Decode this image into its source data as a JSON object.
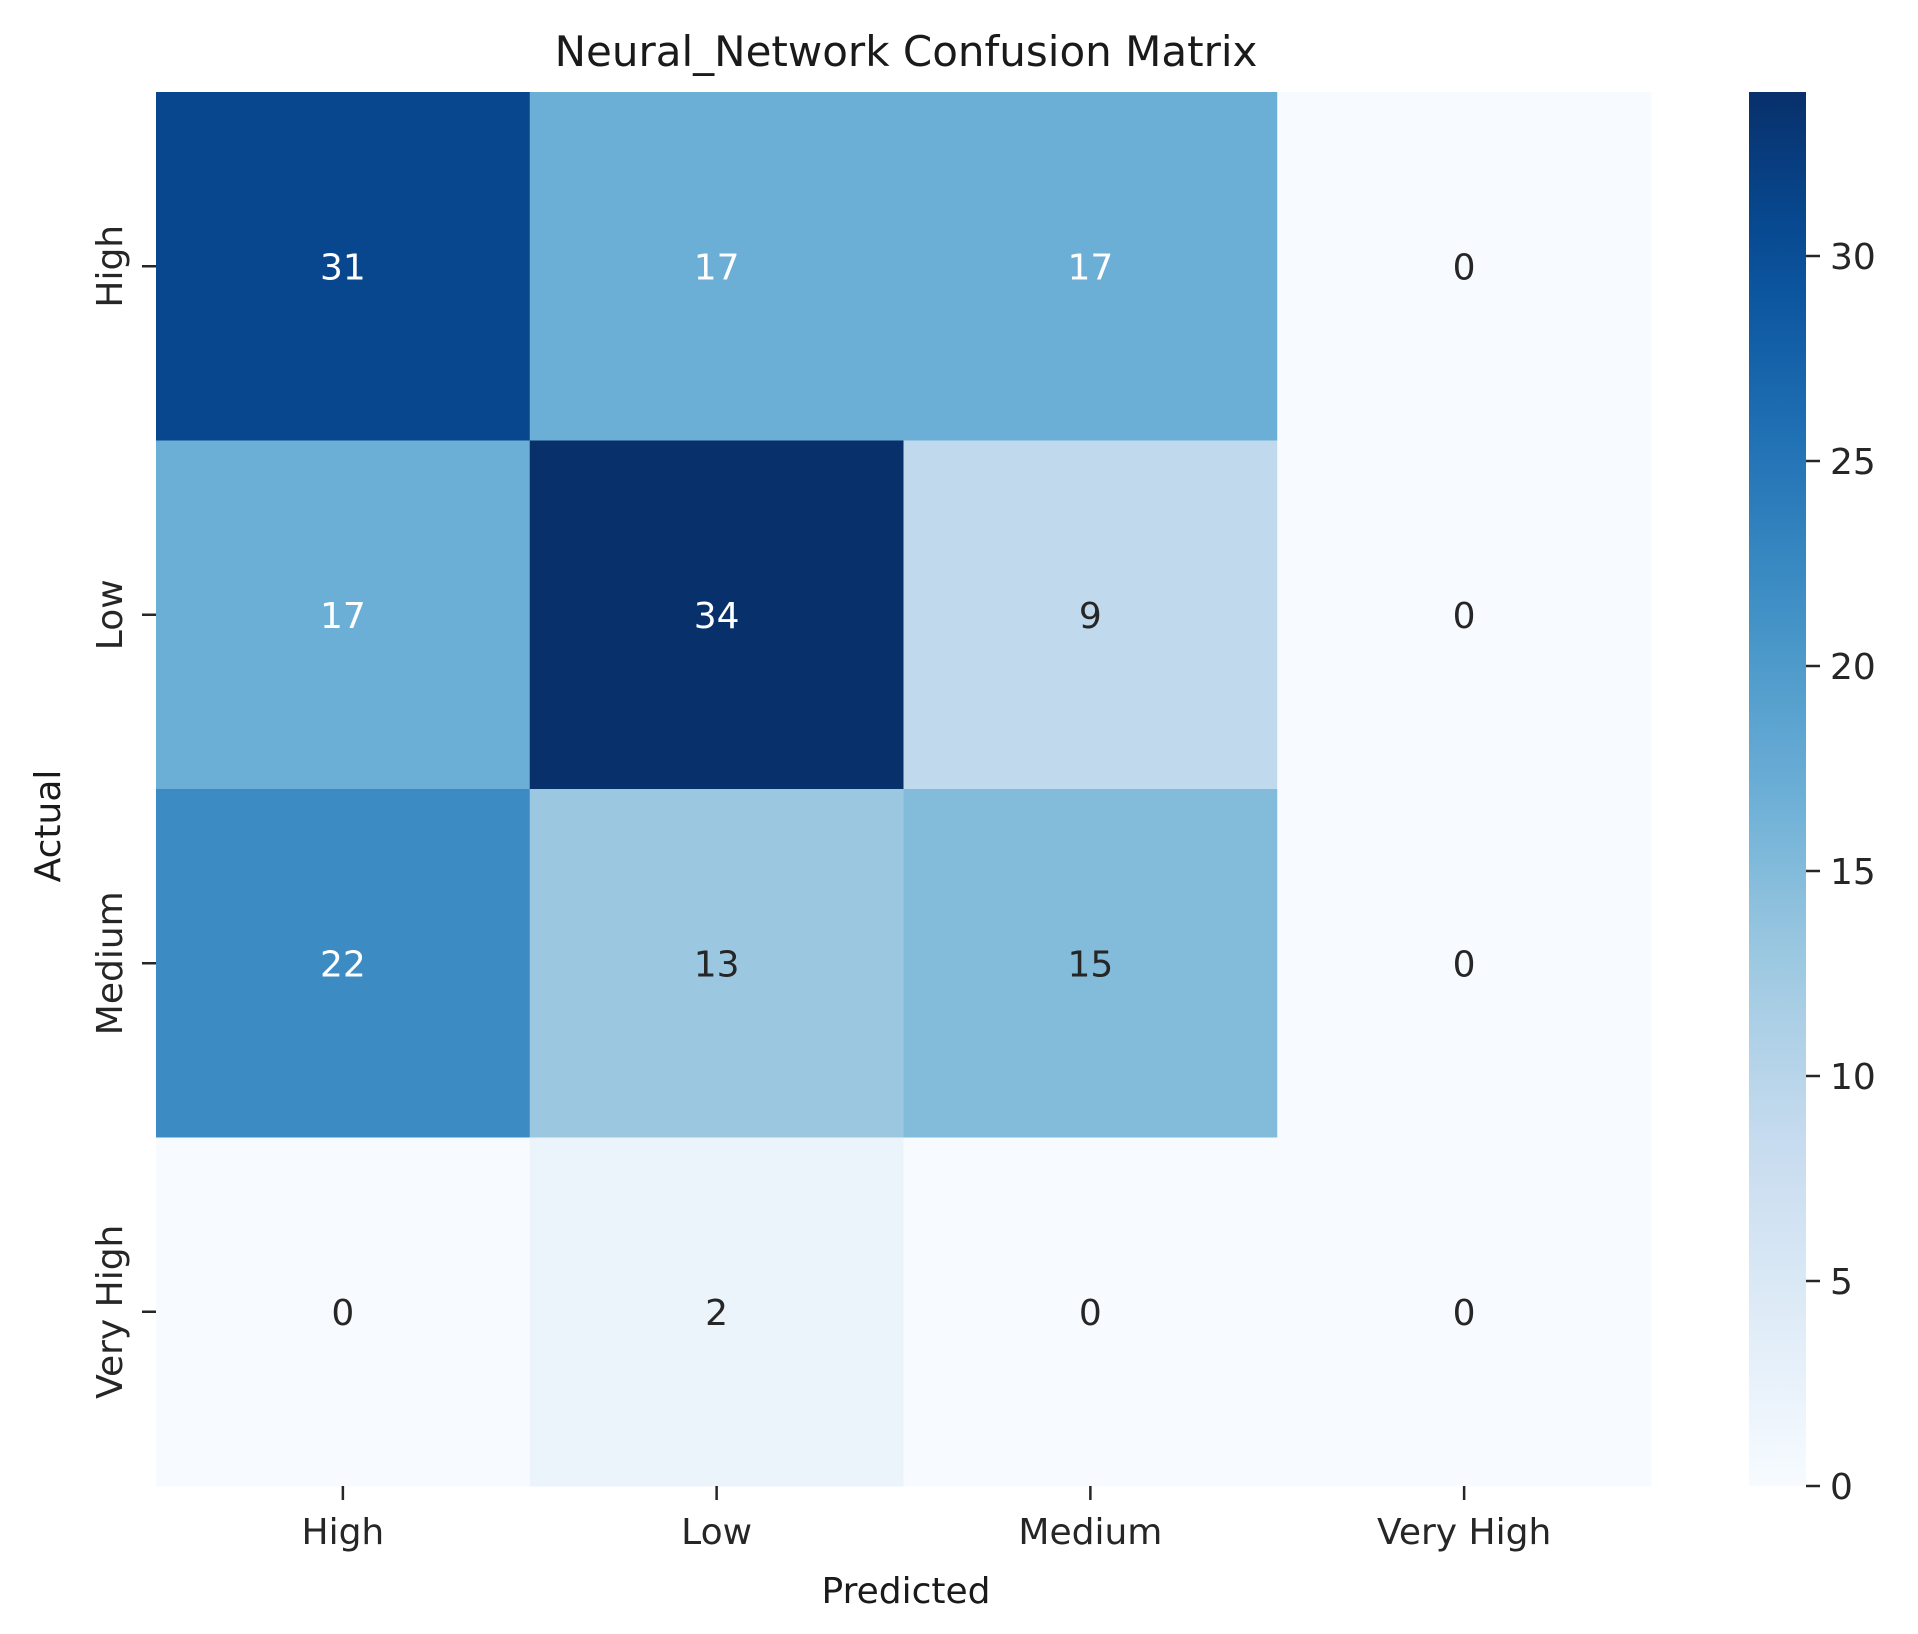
{
  "chart_data": {
    "type": "heatmap",
    "title": "Neural_Network Confusion Matrix",
    "xlabel": "Predicted",
    "ylabel": "Actual",
    "x_categories": [
      "High",
      "Low",
      "Medium",
      "Very High"
    ],
    "y_categories": [
      "High",
      "Low",
      "Medium",
      "Very High"
    ],
    "matrix": [
      [
        31,
        17,
        17,
        0
      ],
      [
        17,
        34,
        9,
        0
      ],
      [
        22,
        13,
        15,
        0
      ],
      [
        0,
        2,
        0,
        0
      ]
    ],
    "colorscale": "Blues",
    "vmin": 0,
    "vmax": 34,
    "colorbar_ticks": [
      0,
      5,
      10,
      15,
      20,
      25,
      30
    ],
    "grid": false
  }
}
